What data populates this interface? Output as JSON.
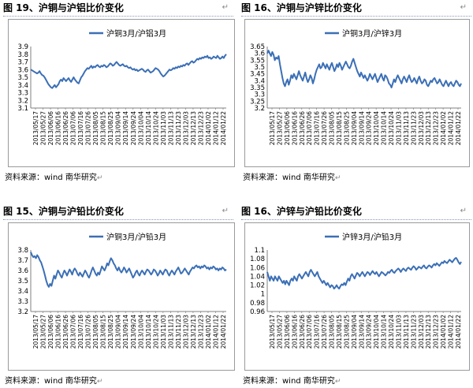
{
  "colors": {
    "line": "#3b6fb6",
    "frame": "#9a9a9a",
    "axis": "#7f7f7f"
  },
  "return_mark": "↵",
  "panels": [
    {
      "title": "图 19、沪铜与沪铝比价变化",
      "source": "资料来源：wind  南华研究",
      "chart_data": {
        "type": "line",
        "series": [
          {
            "name": "沪铜3月/沪铝3月",
            "values": [
              3.6,
              3.59,
              3.58,
              3.57,
              3.56,
              3.55,
              3.56,
              3.58,
              3.55,
              3.53,
              3.52,
              3.5,
              3.47,
              3.44,
              3.41,
              3.39,
              3.37,
              3.36,
              3.38,
              3.4,
              3.37,
              3.39,
              3.41,
              3.45,
              3.47,
              3.45,
              3.49,
              3.47,
              3.45,
              3.47,
              3.49,
              3.46,
              3.44,
              3.47,
              3.5,
              3.47,
              3.45,
              3.43,
              3.42,
              3.46,
              3.5,
              3.52,
              3.55,
              3.58,
              3.6,
              3.62,
              3.61,
              3.63,
              3.65,
              3.62,
              3.64,
              3.63,
              3.65,
              3.66,
              3.64,
              3.63,
              3.65,
              3.64,
              3.66,
              3.65,
              3.63,
              3.64,
              3.66,
              3.68,
              3.67,
              3.65,
              3.66,
              3.68,
              3.7,
              3.68,
              3.66,
              3.65,
              3.66,
              3.67,
              3.65,
              3.64,
              3.65,
              3.63,
              3.62,
              3.63,
              3.61,
              3.6,
              3.61,
              3.59,
              3.6,
              3.58,
              3.59,
              3.6,
              3.61,
              3.6,
              3.58,
              3.57,
              3.59,
              3.6,
              3.58,
              3.56,
              3.57,
              3.58,
              3.6,
              3.62,
              3.61,
              3.6,
              3.58,
              3.55,
              3.53,
              3.51,
              3.52,
              3.54,
              3.56,
              3.58,
              3.6,
              3.59,
              3.6,
              3.62,
              3.61,
              3.63,
              3.62,
              3.64,
              3.63,
              3.65,
              3.64,
              3.66,
              3.65,
              3.67,
              3.68,
              3.66,
              3.68,
              3.7,
              3.71,
              3.69,
              3.7,
              3.72,
              3.74,
              3.73,
              3.75,
              3.74,
              3.76,
              3.75,
              3.77,
              3.76,
              3.78,
              3.75,
              3.76,
              3.74,
              3.75,
              3.77,
              3.76,
              3.75,
              3.78,
              3.76,
              3.74,
              3.75,
              3.77,
              3.75,
              3.78,
              3.8
            ]
          }
        ],
        "ylim": [
          3.1,
          3.9
        ],
        "yticks": [
          "3.9",
          "3.8",
          "3.7",
          "3.6",
          "3.5",
          "3.4",
          "3.3",
          "3.2",
          "3.1"
        ],
        "x_labels": [
          "2013/05/17",
          "2013/05/27",
          "2013/06/06",
          "2013/06/16",
          "2013/06/26",
          "2013/07/06",
          "2013/07/16",
          "2013/07/26",
          "2013/08/05",
          "2013/08/15",
          "2013/08/25",
          "2013/09/04",
          "2013/09/14",
          "2013/09/24",
          "2013/10/04",
          "2013/10/14",
          "2013/10/24",
          "2013/11/03",
          "2013/11/13",
          "2013/11/23",
          "2013/12/03",
          "2013/12/13",
          "2013/12/23",
          "2014/01/02",
          "2014/01/12",
          "2014/01/22"
        ],
        "legend": "top"
      }
    },
    {
      "title": "图 16、沪铜与沪锌比价变化",
      "source": "资料来源：wind  南华研究",
      "chart_data": {
        "type": "line",
        "series": [
          {
            "name": "沪铜3月/沪锌3月",
            "values": [
              3.6,
              3.62,
              3.6,
              3.58,
              3.61,
              3.59,
              3.55,
              3.57,
              3.56,
              3.58,
              3.52,
              3.47,
              3.42,
              3.38,
              3.36,
              3.39,
              3.41,
              3.37,
              3.4,
              3.44,
              3.42,
              3.45,
              3.43,
              3.41,
              3.44,
              3.47,
              3.44,
              3.42,
              3.4,
              3.43,
              3.46,
              3.42,
              3.39,
              3.41,
              3.44,
              3.42,
              3.38,
              3.41,
              3.45,
              3.48,
              3.5,
              3.52,
              3.49,
              3.5,
              3.53,
              3.51,
              3.49,
              3.52,
              3.5,
              3.48,
              3.51,
              3.53,
              3.5,
              3.47,
              3.49,
              3.52,
              3.5,
              3.53,
              3.51,
              3.48,
              3.5,
              3.52,
              3.54,
              3.52,
              3.5,
              3.49,
              3.51,
              3.54,
              3.56,
              3.53,
              3.5,
              3.47,
              3.45,
              3.43,
              3.46,
              3.44,
              3.42,
              3.44,
              3.42,
              3.4,
              3.42,
              3.45,
              3.43,
              3.41,
              3.43,
              3.45,
              3.42,
              3.39,
              3.41,
              3.43,
              3.45,
              3.42,
              3.4,
              3.44,
              3.43,
              3.41,
              3.38,
              3.37,
              3.35,
              3.38,
              3.41,
              3.39,
              3.42,
              3.44,
              3.42,
              3.4,
              3.38,
              3.41,
              3.43,
              3.41,
              3.39,
              3.42,
              3.44,
              3.41,
              3.39,
              3.4,
              3.42,
              3.4,
              3.38,
              3.41,
              3.43,
              3.4,
              3.38,
              3.39,
              3.41,
              3.4,
              3.37,
              3.36,
              3.38,
              3.4,
              3.39,
              3.41,
              3.42,
              3.4,
              3.38,
              3.39,
              3.41,
              3.39,
              3.37,
              3.36,
              3.38,
              3.4,
              3.38,
              3.36,
              3.38,
              3.39,
              3.37,
              3.36,
              3.38,
              3.4,
              3.39,
              3.37,
              3.36,
              3.38
            ]
          }
        ],
        "ylim": [
          3.2,
          3.65
        ],
        "yticks": [
          "3.65",
          "3.6",
          "3.55",
          "3.5",
          "3.45",
          "3.4",
          "3.35",
          "3.3",
          "3.25",
          "3.2"
        ],
        "x_labels": [
          "2013/05/17",
          "2013/05/27",
          "2013/06/06",
          "2013/06/16",
          "2013/06/26",
          "2013/07/06",
          "2013/07/16",
          "2013/07/26",
          "2013/08/05",
          "2013/08/15",
          "2013/08/25",
          "2013/09/04",
          "2013/09/14",
          "2013/09/24",
          "2013/10/04",
          "2013/10/14",
          "2013/10/24",
          "2013/11/03",
          "2013/11/13",
          "2013/11/23",
          "2013/12/03",
          "2013/12/13",
          "2013/12/23",
          "2014/01/02",
          "2014/01/12",
          "2014/01/22"
        ],
        "legend": "top"
      }
    },
    {
      "title": "图 15、沪铜与沪铅比价变化",
      "source": "资料来源：wind  南华研究",
      "chart_data": {
        "type": "line",
        "series": [
          {
            "name": "沪铜3月/沪铅3月",
            "values": [
              3.78,
              3.75,
              3.73,
              3.74,
              3.72,
              3.75,
              3.73,
              3.7,
              3.68,
              3.64,
              3.6,
              3.55,
              3.5,
              3.46,
              3.44,
              3.47,
              3.45,
              3.5,
              3.55,
              3.52,
              3.56,
              3.6,
              3.58,
              3.55,
              3.53,
              3.57,
              3.6,
              3.58,
              3.55,
              3.58,
              3.61,
              3.59,
              3.56,
              3.6,
              3.62,
              3.6,
              3.57,
              3.55,
              3.58,
              3.56,
              3.54,
              3.57,
              3.6,
              3.58,
              3.55,
              3.53,
              3.56,
              3.6,
              3.63,
              3.6,
              3.57,
              3.55,
              3.58,
              3.56,
              3.6,
              3.64,
              3.62,
              3.6,
              3.63,
              3.67,
              3.65,
              3.69,
              3.72,
              3.7,
              3.67,
              3.65,
              3.62,
              3.6,
              3.63,
              3.6,
              3.58,
              3.6,
              3.63,
              3.61,
              3.58,
              3.6,
              3.62,
              3.59,
              3.56,
              3.53,
              3.55,
              3.58,
              3.6,
              3.57,
              3.55,
              3.58,
              3.6,
              3.58,
              3.56,
              3.59,
              3.61,
              3.6,
              3.58,
              3.56,
              3.58,
              3.61,
              3.6,
              3.58,
              3.55,
              3.57,
              3.6,
              3.58,
              3.56,
              3.59,
              3.61,
              3.6,
              3.57,
              3.55,
              3.58,
              3.6,
              3.58,
              3.56,
              3.59,
              3.61,
              3.63,
              3.6,
              3.57,
              3.58,
              3.6,
              3.62,
              3.6,
              3.58,
              3.56,
              3.59,
              3.61,
              3.63,
              3.62,
              3.64,
              3.65,
              3.63,
              3.64,
              3.62,
              3.64,
              3.63,
              3.65,
              3.64,
              3.62,
              3.63,
              3.61,
              3.63,
              3.62,
              3.64,
              3.63,
              3.61,
              3.62,
              3.6,
              3.62,
              3.61,
              3.63,
              3.62,
              3.6,
              3.61
            ]
          }
        ],
        "ylim": [
          3.2,
          3.8
        ],
        "yticks": [
          "3.8",
          "3.7",
          "3.6",
          "3.5",
          "3.4",
          "3.3",
          "3.2"
        ],
        "x_labels": [
          "2013/05/17",
          "2013/05/27",
          "2013/06/06",
          "2013/06/16",
          "2013/06/26",
          "2013/07/06",
          "2013/07/16",
          "2013/07/26",
          "2013/08/05",
          "2013/08/15",
          "2013/08/25",
          "2013/09/04",
          "2013/09/14",
          "2013/09/24",
          "2013/10/04",
          "2013/10/14",
          "2013/10/24",
          "2013/11/03",
          "2013/11/13",
          "2013/11/23",
          "2013/12/03",
          "2013/12/13",
          "2013/12/23",
          "2014/01/02",
          "2014/01/12",
          "2014/01/22"
        ],
        "legend": "top"
      }
    },
    {
      "title": "图 16、沪锌与沪铅比价变化",
      "source": "资料来源：wind  南华研究",
      "chart_data": {
        "type": "line",
        "series": [
          {
            "name": "沪锌3月/沪铅3月",
            "values": [
              1.05,
              1.04,
              1.03,
              1.04,
              1.035,
              1.03,
              1.04,
              1.035,
              1.03,
              1.04,
              1.035,
              1.03,
              1.025,
              1.03,
              1.022,
              1.03,
              1.025,
              1.02,
              1.03,
              1.035,
              1.03,
              1.04,
              1.035,
              1.03,
              1.04,
              1.045,
              1.04,
              1.035,
              1.04,
              1.045,
              1.05,
              1.045,
              1.04,
              1.05,
              1.055,
              1.05,
              1.045,
              1.04,
              1.045,
              1.05,
              1.04,
              1.035,
              1.03,
              1.025,
              1.03,
              1.025,
              1.02,
              1.025,
              1.02,
              1.015,
              1.02,
              1.018,
              1.012,
              1.015,
              1.02,
              1.015,
              1.012,
              1.018,
              1.022,
              1.02,
              1.025,
              1.02,
              1.028,
              1.035,
              1.03,
              1.04,
              1.045,
              1.04,
              1.035,
              1.042,
              1.048,
              1.045,
              1.04,
              1.045,
              1.05,
              1.045,
              1.04,
              1.045,
              1.05,
              1.048,
              1.043,
              1.048,
              1.052,
              1.048,
              1.045,
              1.05,
              1.045,
              1.04,
              1.045,
              1.05,
              1.048,
              1.045,
              1.042,
              1.045,
              1.05,
              1.048,
              1.052,
              1.055,
              1.05,
              1.048,
              1.052,
              1.055,
              1.058,
              1.055,
              1.05,
              1.055,
              1.058,
              1.055,
              1.052,
              1.058,
              1.06,
              1.057,
              1.055,
              1.06,
              1.063,
              1.06,
              1.055,
              1.058,
              1.062,
              1.06,
              1.058,
              1.062,
              1.065,
              1.06,
              1.058,
              1.062,
              1.065,
              1.063,
              1.06,
              1.065,
              1.068,
              1.065,
              1.07,
              1.067,
              1.064,
              1.068,
              1.072,
              1.07,
              1.075,
              1.072,
              1.07,
              1.074,
              1.078,
              1.075,
              1.072,
              1.076,
              1.08,
              1.082,
              1.078,
              1.072,
              1.068,
              1.073
            ]
          }
        ],
        "ylim": [
          0.96,
          1.1
        ],
        "yticks": [
          "1.1",
          "1.08",
          "1.06",
          "1.04",
          "1.02",
          "1",
          "0.98",
          "0.96"
        ],
        "x_labels": [
          "2013/05/17",
          "2013/05/27",
          "2013/06/06",
          "2013/06/16",
          "2013/06/26",
          "2013/07/06",
          "2013/07/16",
          "2013/07/26",
          "2013/08/05",
          "2013/08/15",
          "2013/08/25",
          "2013/09/04",
          "2013/09/14",
          "2013/09/24",
          "2013/10/04",
          "2013/10/14",
          "2013/10/24",
          "2013/11/03",
          "2013/11/13",
          "2013/11/23",
          "2013/12/03",
          "2013/12/13",
          "2013/12/23",
          "2014/01/02",
          "2014/01/12",
          "2014/01/22"
        ],
        "legend": "top"
      }
    }
  ]
}
